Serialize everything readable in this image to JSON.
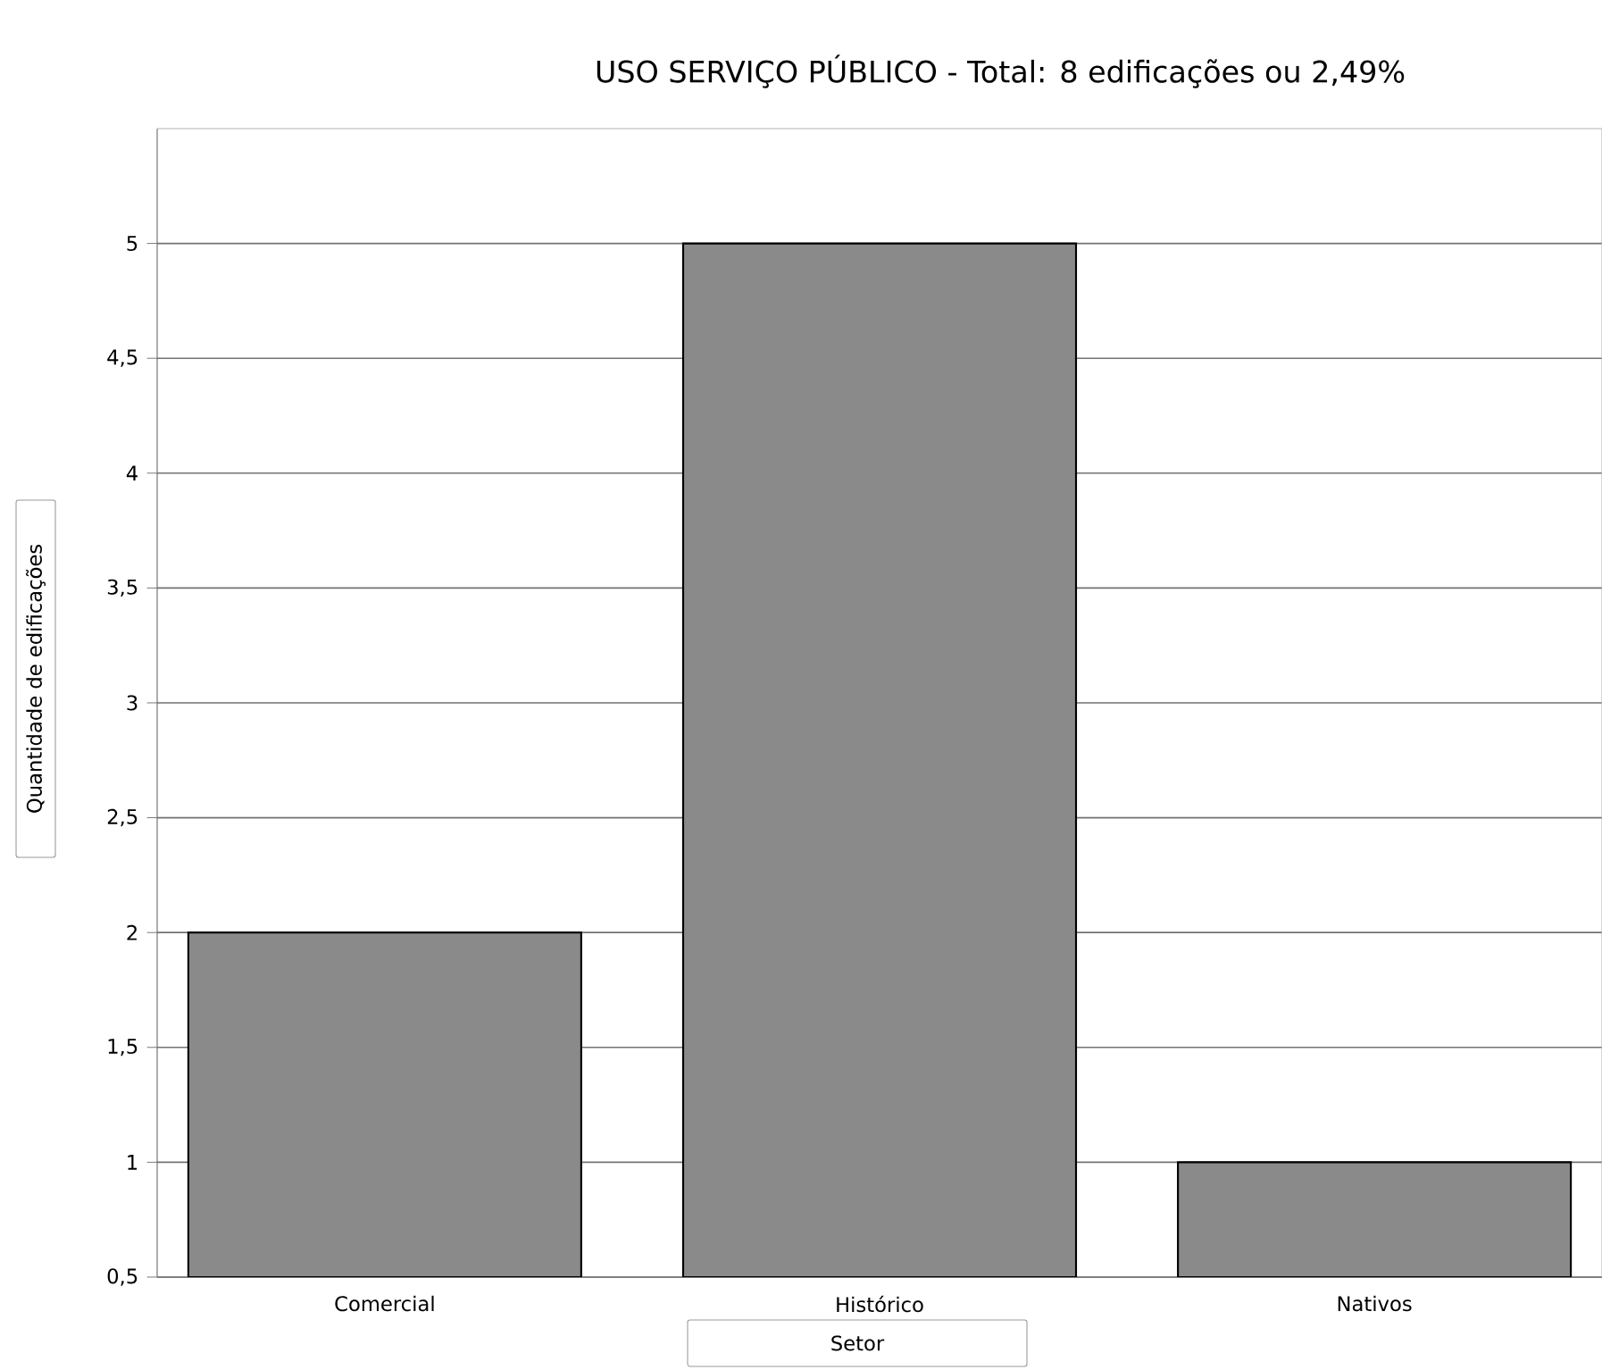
{
  "chart_data": {
    "type": "bar",
    "title": "USO SERVIÇO PÚBLICO - Total: 8 edificações ou 2,49%",
    "xlabel": "Setor",
    "ylabel": "Quantidade de edificações",
    "categories": [
      "Comercial",
      "Histórico",
      "Nativos"
    ],
    "values": [
      2,
      5,
      1
    ],
    "color": "#8a8a8a",
    "ylim": [
      0.5,
      5.5
    ],
    "yticks": [
      {
        "value": 0.5,
        "label": "0,5"
      },
      {
        "value": 1,
        "label": "1"
      },
      {
        "value": 1.5,
        "label": "1,5"
      },
      {
        "value": 2,
        "label": "2"
      },
      {
        "value": 2.5,
        "label": "2,5"
      },
      {
        "value": 3,
        "label": "3"
      },
      {
        "value": 3.5,
        "label": "3,5"
      },
      {
        "value": 4,
        "label": "4"
      },
      {
        "value": 4.5,
        "label": "4,5"
      },
      {
        "value": 5,
        "label": "5"
      }
    ],
    "grid": "y"
  }
}
